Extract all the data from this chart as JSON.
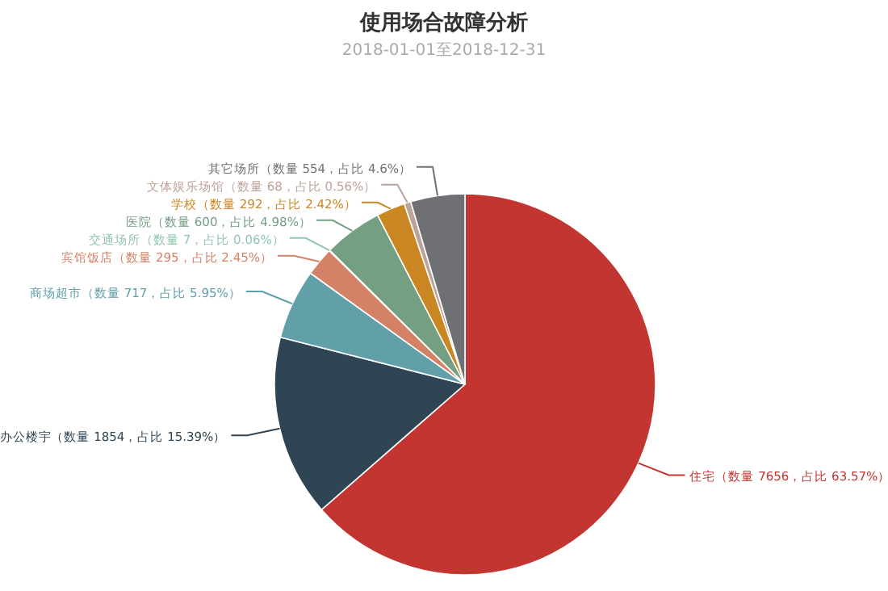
{
  "chart_data": {
    "type": "pie",
    "title": "使用场合故障分析",
    "subtitle": "2018-01-01至2018-12-31",
    "categories": [
      "住宅",
      "办公楼宇",
      "商场超市",
      "宾馆饭店",
      "交通场所",
      "医院",
      "学校",
      "文体娱乐场馆",
      "其它场所"
    ],
    "values": [
      7656,
      1854,
      717,
      295,
      7,
      600,
      292,
      68,
      554
    ],
    "value_labels": [
      "（数量 7656，占比 63.57%）",
      "（数量 1854，占比 15.39%）",
      "（数量 717，占比 5.95%）",
      "（数量 295，占比 2.45%）",
      "（数量 7，占比 0.06%）",
      "（数量 600，占比 4.98%）",
      "（数量 292，占比 2.42%）",
      "（数量 68，占比 0.56%）",
      "（数量 554，占比 4.6%）"
    ],
    "colors": [
      "#c23531",
      "#2f4554",
      "#61a0a8",
      "#d48265",
      "#91c7ae",
      "#749f83",
      "#ca8622",
      "#bda29a",
      "#6e7074"
    ],
    "legend": false
  }
}
